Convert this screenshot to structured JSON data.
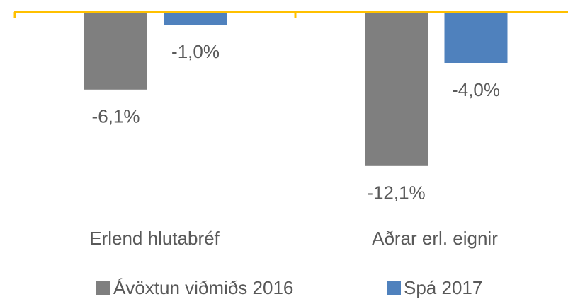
{
  "chart_data": {
    "type": "bar",
    "categories": [
      "Erlend hlutabréf",
      "Aðrar erl. eignir"
    ],
    "series": [
      {
        "name": "Ávöxtun viðmiðs 2016",
        "color": "#7f7f7f",
        "values": [
          -6.1,
          -12.1
        ],
        "value_labels": [
          "-6,1%",
          "-12,1%"
        ]
      },
      {
        "name": "Spá 2017",
        "color": "#4f81bd",
        "values": [
          -1.0,
          -4.0
        ],
        "value_labels": [
          "-1,0%",
          "-4,0%"
        ]
      }
    ],
    "ylim": [
      -13,
      0
    ],
    "axis_color": "#ffc000",
    "legend": "bottom"
  }
}
